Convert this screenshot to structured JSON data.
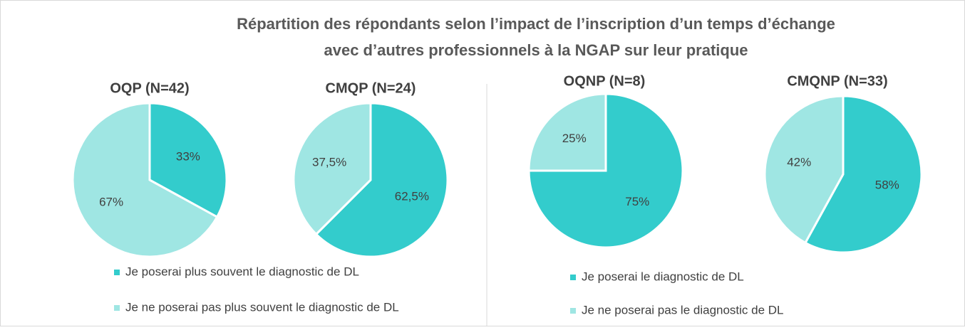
{
  "title": [
    "Répartition des répondants selon l’impact de l’inscription d’un temps d’échange",
    "avec d’autres professionnels à la NGAP sur leur pratique"
  ],
  "chart_data": [
    {
      "type": "pie",
      "categories": [
        "Je poserai plus souvent le diagnostic de DL",
        "Je ne poserai pas plus souvent le diagnostic de DL"
      ],
      "colors": [
        "#33cccc",
        "#9fe6e3"
      ],
      "pies": [
        {
          "title": "OQP (N=42)",
          "values": [
            33,
            67
          ],
          "value_labels": [
            "33%",
            "67%"
          ]
        },
        {
          "title": "CMQP (N=24)",
          "values": [
            62.5,
            37.5
          ],
          "value_labels": [
            "62,5%",
            "37,5%"
          ]
        }
      ]
    },
    {
      "type": "pie",
      "categories": [
        "Je poserai le diagnostic de DL",
        "Je ne poserai pas le diagnostic de DL"
      ],
      "colors": [
        "#33cccc",
        "#9fe6e3"
      ],
      "pies": [
        {
          "title": "OQNP (N=8)",
          "values": [
            75,
            25
          ],
          "value_labels": [
            "75%",
            "25%"
          ]
        },
        {
          "title": "CMQNP (N=33)",
          "values": [
            58,
            42
          ],
          "value_labels": [
            "58%",
            "42%"
          ]
        }
      ]
    }
  ]
}
